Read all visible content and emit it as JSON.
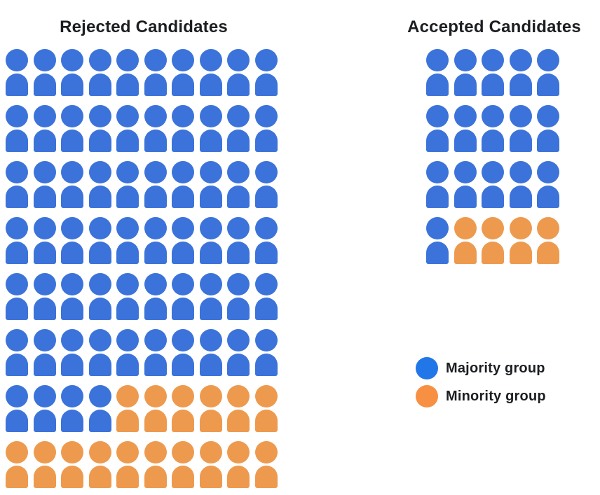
{
  "page": {
    "background": "#ffffff",
    "text_color": "#1c1e21"
  },
  "colors": {
    "majority_icon": "#3B73DA",
    "minority_icon": "#EE9A4E",
    "majority_legend": "#2177E8",
    "minority_legend": "#F79042"
  },
  "legend": {
    "items": [
      {
        "id": "majority",
        "label": "Majority group",
        "color": "#2177E8"
      },
      {
        "id": "minority",
        "label": "Minority group",
        "color": "#F79042"
      }
    ]
  },
  "chart_data": {
    "type": "pictogram",
    "description": "Each person icon represents one candidate; color indicates group membership. Icons per row run left to right, majority (blue) first, then minority (orange).",
    "groups": [
      {
        "name": "Majority group",
        "color": "#2177E8"
      },
      {
        "name": "Minority group",
        "color": "#F79042"
      }
    ],
    "panels": [
      {
        "title": "Rejected Candidates",
        "columns": 10,
        "rows": [
          [
            10,
            0
          ],
          [
            10,
            0
          ],
          [
            10,
            0
          ],
          [
            10,
            0
          ],
          [
            10,
            0
          ],
          [
            10,
            0
          ],
          [
            4,
            6
          ],
          [
            0,
            10
          ]
        ],
        "totals": {
          "majority": 64,
          "minority": 16,
          "total": 80
        }
      },
      {
        "title": "Accepted Candidates",
        "columns": 5,
        "rows": [
          [
            5,
            0
          ],
          [
            5,
            0
          ],
          [
            5,
            0
          ],
          [
            1,
            4
          ]
        ],
        "totals": {
          "majority": 16,
          "minority": 4,
          "total": 20
        }
      }
    ]
  }
}
